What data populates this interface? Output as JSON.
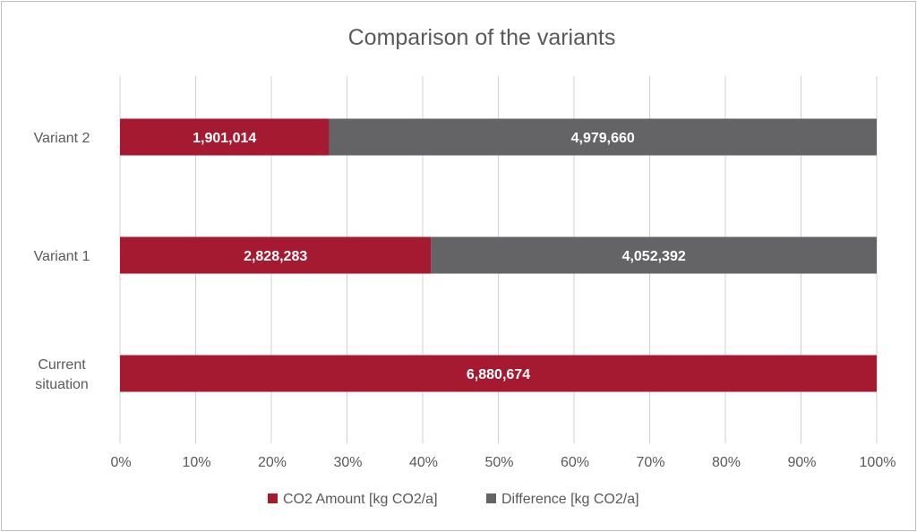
{
  "chart_data": {
    "type": "bar",
    "orientation": "horizontal",
    "stacked": "percent",
    "title": "Comparison of the variants",
    "categories": [
      "Current situation",
      "Variant 1",
      "Variant 2"
    ],
    "category_lines": [
      [
        "Current",
        "situation"
      ],
      [
        "Variant 1"
      ],
      [
        "Variant 2"
      ]
    ],
    "series": [
      {
        "name": "CO2 Amount [kg CO2/a]",
        "color": "#A51931",
        "values": [
          6880674,
          2828283,
          1901014
        ],
        "labels": [
          "6,880,674",
          "2,828,283",
          "1,901,014"
        ]
      },
      {
        "name": "Difference [kg CO2/a]",
        "color": "#646366",
        "values": [
          0,
          4052392,
          4979660
        ],
        "labels": [
          "",
          "4,052,392",
          "4,979,660"
        ]
      }
    ],
    "x_ticks": [
      "0%",
      "10%",
      "20%",
      "30%",
      "40%",
      "50%",
      "60%",
      "70%",
      "80%",
      "90%",
      "100%"
    ],
    "xlim": [
      0,
      100
    ],
    "grid": "vertical",
    "legend_position": "bottom"
  }
}
